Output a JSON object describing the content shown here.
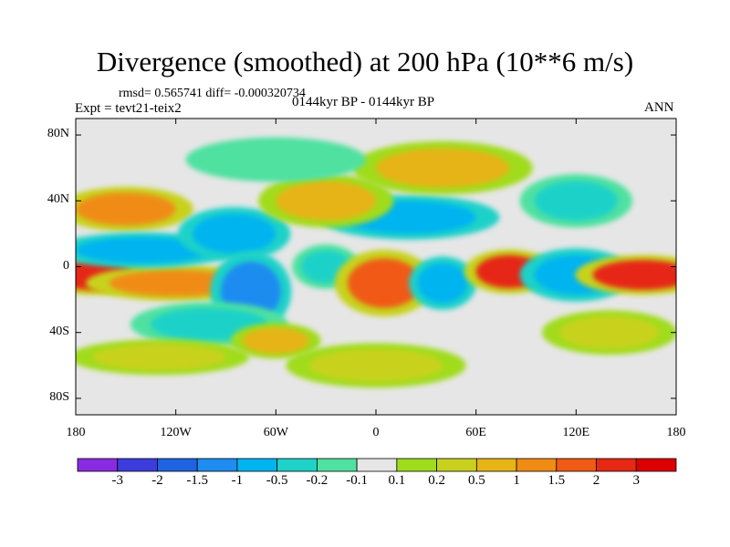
{
  "title": "Divergence (smoothed) at 200 hPa (10**6 m/s)",
  "rmsd_text": "rmsd= 0.565741 diff= -0.000320734",
  "expt_text": "Expt = tevt21-teix2",
  "center_text": "0144kyr BP - 0144kyr BP",
  "season_text": "ANN",
  "chart_data": {
    "type": "heatmap",
    "title": "Divergence (smoothed) at 200 hPa (10**6 m/s)",
    "xlabel": "",
    "ylabel": "",
    "xlim": [
      -180,
      180
    ],
    "ylim": [
      -90,
      90
    ],
    "x_ticks": [
      {
        "value": -180,
        "label": "180"
      },
      {
        "value": -120,
        "label": "120W"
      },
      {
        "value": -60,
        "label": "60W"
      },
      {
        "value": 0,
        "label": "0"
      },
      {
        "value": 60,
        "label": "60E"
      },
      {
        "value": 120,
        "label": "120E"
      },
      {
        "value": 180,
        "label": "180"
      }
    ],
    "y_ticks": [
      {
        "value": 80,
        "label": "80N"
      },
      {
        "value": 40,
        "label": "40N"
      },
      {
        "value": 0,
        "label": "0"
      },
      {
        "value": -40,
        "label": "40S"
      },
      {
        "value": -80,
        "label": "80S"
      }
    ],
    "colorbar": {
      "labels": [
        "-3",
        "-2",
        "-1.5",
        "-1",
        "-0.5",
        "-0.2",
        "-0.1",
        "0.1",
        "0.2",
        "0.5",
        "1",
        "1.5",
        "2",
        "3"
      ],
      "colors": [
        "#8a2be2",
        "#3c3cdc",
        "#1e64e1",
        "#1e8cf0",
        "#00b4f0",
        "#1ed2c8",
        "#50e1a0",
        "#e6e6e6",
        "#a0dc1e",
        "#c8d21e",
        "#e6b414",
        "#f08c14",
        "#f05a14",
        "#e62814",
        "#dc0000"
      ]
    },
    "regions": [
      {
        "lon": -170,
        "lat": -5,
        "rlon": 25,
        "rlat": 9,
        "level": 2
      },
      {
        "lon": -120,
        "lat": -10,
        "rlon": 40,
        "rlat": 8,
        "level": 1
      },
      {
        "lon": -150,
        "lat": 35,
        "rlon": 30,
        "rlat": 10,
        "level": 1
      },
      {
        "lon": -140,
        "lat": 10,
        "rlon": 40,
        "rlat": 8,
        "level": -1
      },
      {
        "lon": -85,
        "lat": 20,
        "rlon": 25,
        "rlat": 12,
        "level": -1
      },
      {
        "lon": -75,
        "lat": -15,
        "rlon": 18,
        "rlat": 18,
        "level": -1.5
      },
      {
        "lon": -100,
        "lat": -35,
        "rlon": 35,
        "rlat": 10,
        "level": -0.5
      },
      {
        "lon": -30,
        "lat": 0,
        "rlon": 15,
        "rlat": 10,
        "level": -0.5
      },
      {
        "lon": 5,
        "lat": -10,
        "rlon": 22,
        "rlat": 15,
        "level": 1.5
      },
      {
        "lon": 40,
        "lat": -10,
        "rlon": 15,
        "rlat": 12,
        "level": -1
      },
      {
        "lon": 80,
        "lat": -3,
        "rlon": 20,
        "rlat": 10,
        "level": 2
      },
      {
        "lon": 120,
        "lat": -5,
        "rlon": 25,
        "rlat": 12,
        "level": -1
      },
      {
        "lon": 160,
        "lat": -5,
        "rlon": 30,
        "rlat": 9,
        "level": 2
      },
      {
        "lon": 20,
        "lat": 30,
        "rlon": 40,
        "rlat": 10,
        "level": -1
      },
      {
        "lon": -30,
        "lat": 40,
        "rlon": 30,
        "rlat": 12,
        "level": 0.5
      },
      {
        "lon": 40,
        "lat": 60,
        "rlon": 40,
        "rlat": 12,
        "level": 0.5
      },
      {
        "lon": 120,
        "lat": 40,
        "rlon": 25,
        "rlat": 12,
        "level": -0.5
      },
      {
        "lon": -60,
        "lat": 65,
        "rlon": 40,
        "rlat": 10,
        "level": -0.2
      },
      {
        "lon": 0,
        "lat": -60,
        "rlon": 40,
        "rlat": 10,
        "level": 0.2
      },
      {
        "lon": -130,
        "lat": -55,
        "rlon": 40,
        "rlat": 8,
        "level": 0.2
      },
      {
        "lon": 140,
        "lat": -40,
        "rlon": 30,
        "rlat": 10,
        "level": 0.2
      },
      {
        "lon": -60,
        "lat": -45,
        "rlon": 20,
        "rlat": 8,
        "level": 0.5
      }
    ]
  }
}
